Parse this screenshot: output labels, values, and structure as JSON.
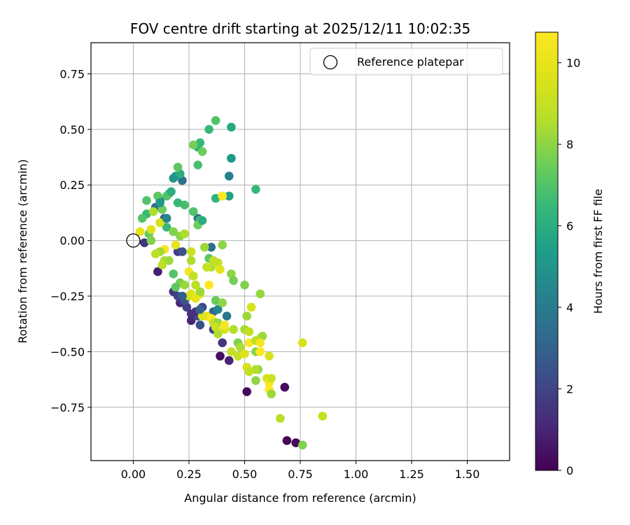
{
  "chart_data": {
    "type": "scatter",
    "title": "FOV centre drift starting at 2025/12/11 10:02:35",
    "xlabel": "Angular distance from reference (arcmin)",
    "ylabel": "Rotation from reference (arcmin)",
    "xlim": [
      -0.19,
      1.69
    ],
    "ylim": [
      -0.99,
      0.89
    ],
    "xticks": [
      0.0,
      0.25,
      0.5,
      0.75,
      1.0,
      1.25,
      1.5
    ],
    "yticks": [
      -0.75,
      -0.5,
      -0.25,
      0.0,
      0.25,
      0.5,
      0.75
    ],
    "xtick_labels": [
      "0.00",
      "0.25",
      "0.50",
      "0.75",
      "1.00",
      "1.25",
      "1.50"
    ],
    "ytick_labels": [
      "−0.75",
      "−0.50",
      "−0.25",
      "0.00",
      "0.25",
      "0.50",
      "0.75"
    ],
    "grid": true,
    "legend": {
      "location": "upper-right",
      "entries": [
        "Reference platepar"
      ]
    },
    "reference_point": {
      "x": 0.0,
      "y": 0.0
    },
    "colorbar": {
      "label": "Hours from first FF file",
      "min": 0,
      "max": 10.75,
      "ticks": [
        0,
        2,
        4,
        6,
        8,
        10
      ],
      "tick_labels": [
        "0",
        "2",
        "4",
        "6",
        "8",
        "10"
      ],
      "colormap": "viridis"
    },
    "points": [
      [
        0.69,
        -0.9,
        0.1
      ],
      [
        0.73,
        -0.91,
        0.2
      ],
      [
        0.68,
        -0.66,
        0.3
      ],
      [
        0.51,
        -0.68,
        0.2
      ],
      [
        0.39,
        -0.52,
        0.4
      ],
      [
        0.43,
        -0.54,
        1.0
      ],
      [
        0.4,
        -0.46,
        1.5
      ],
      [
        0.36,
        -0.4,
        2.0
      ],
      [
        0.3,
        -0.38,
        2.4
      ],
      [
        0.26,
        -0.36,
        1.0
      ],
      [
        0.21,
        -0.28,
        1.2
      ],
      [
        0.18,
        -0.23,
        1.5
      ],
      [
        0.11,
        -0.14,
        0.8
      ],
      [
        0.05,
        -0.01,
        1.5
      ],
      [
        0.24,
        -0.3,
        1.8
      ],
      [
        0.29,
        -0.34,
        2.2
      ],
      [
        0.31,
        -0.3,
        2.0
      ],
      [
        0.28,
        -0.32,
        1.6
      ],
      [
        0.26,
        -0.33,
        1.3
      ],
      [
        0.23,
        -0.27,
        2.5
      ],
      [
        0.2,
        -0.25,
        2.0
      ],
      [
        0.2,
        -0.05,
        1.8
      ],
      [
        0.22,
        -0.05,
        2.5
      ],
      [
        0.14,
        0.1,
        2.6
      ],
      [
        0.12,
        0.18,
        3.0
      ],
      [
        0.1,
        0.15,
        3.5
      ],
      [
        0.36,
        -0.32,
        3.2
      ],
      [
        0.42,
        -0.34,
        3.8
      ],
      [
        0.37,
        -0.37,
        3.5
      ],
      [
        0.38,
        -0.31,
        4.5
      ],
      [
        0.35,
        -0.03,
        3.5
      ],
      [
        0.29,
        0.1,
        4.0
      ],
      [
        0.22,
        0.27,
        3.5
      ],
      [
        0.43,
        0.29,
        4.2
      ],
      [
        0.44,
        0.37,
        5.2
      ],
      [
        0.44,
        0.51,
        5.8
      ],
      [
        0.43,
        0.2,
        5.5
      ],
      [
        0.29,
        0.42,
        6.2
      ],
      [
        0.3,
        0.44,
        6.5
      ],
      [
        0.34,
        0.5,
        6.5
      ],
      [
        0.37,
        0.54,
        7.0
      ],
      [
        0.55,
        0.23,
        6.5
      ],
      [
        0.37,
        0.19,
        6.2
      ],
      [
        0.19,
        0.29,
        5.5
      ],
      [
        0.21,
        0.3,
        6.0
      ],
      [
        0.31,
        0.4,
        7.5
      ],
      [
        0.27,
        0.43,
        7.6
      ],
      [
        0.29,
        0.34,
        6.8
      ],
      [
        0.2,
        0.33,
        7.2
      ],
      [
        0.23,
        0.16,
        6.8
      ],
      [
        0.2,
        0.17,
        6.5
      ],
      [
        0.27,
        0.13,
        7.0
      ],
      [
        0.3,
        0.09,
        6.8
      ],
      [
        0.29,
        0.07,
        7.5
      ],
      [
        0.16,
        0.21,
        6.7
      ],
      [
        0.15,
        0.2,
        7.0
      ],
      [
        0.11,
        0.2,
        7.2
      ],
      [
        0.06,
        0.18,
        7.0
      ],
      [
        0.06,
        0.12,
        6.5
      ],
      [
        0.04,
        0.1,
        7.0
      ],
      [
        0.07,
        0.03,
        7.4
      ],
      [
        0.08,
        0.0,
        7.8
      ],
      [
        0.13,
        0.14,
        7.5
      ],
      [
        0.09,
        0.13,
        8.5
      ],
      [
        0.15,
        0.06,
        6.5
      ],
      [
        0.18,
        0.04,
        7.8
      ],
      [
        0.21,
        0.02,
        8.0
      ],
      [
        0.23,
        0.03,
        8.5
      ],
      [
        0.12,
        0.08,
        9.5
      ],
      [
        0.08,
        0.05,
        9.8
      ],
      [
        0.03,
        0.04,
        10.0
      ],
      [
        0.14,
        -0.04,
        10.5
      ],
      [
        0.19,
        -0.02,
        10.0
      ],
      [
        0.12,
        -0.05,
        8.3
      ],
      [
        0.1,
        -0.06,
        8.8
      ],
      [
        0.14,
        -0.09,
        8.5
      ],
      [
        0.16,
        -0.09,
        8.2
      ],
      [
        0.13,
        -0.11,
        8.8
      ],
      [
        0.18,
        -0.15,
        7.0
      ],
      [
        0.21,
        -0.19,
        7.6
      ],
      [
        0.19,
        -0.21,
        7.2
      ],
      [
        0.23,
        -0.2,
        8.2
      ],
      [
        0.25,
        -0.25,
        9.0
      ],
      [
        0.26,
        -0.24,
        9.7
      ],
      [
        0.25,
        -0.14,
        10.5
      ],
      [
        0.27,
        -0.16,
        9.0
      ],
      [
        0.26,
        -0.09,
        8.5
      ],
      [
        0.26,
        -0.05,
        9.2
      ],
      [
        0.32,
        -0.03,
        8.2
      ],
      [
        0.34,
        -0.08,
        7.2
      ],
      [
        0.35,
        -0.12,
        8.6
      ],
      [
        0.33,
        -0.12,
        9.0
      ],
      [
        0.36,
        -0.09,
        8.8
      ],
      [
        0.38,
        -0.1,
        9.0
      ],
      [
        0.39,
        -0.13,
        9.8
      ],
      [
        0.4,
        -0.02,
        8.0
      ],
      [
        0.44,
        -0.15,
        8.0
      ],
      [
        0.45,
        -0.18,
        7.6
      ],
      [
        0.5,
        -0.2,
        7.8
      ],
      [
        0.57,
        -0.24,
        8.1
      ],
      [
        0.34,
        -0.2,
        10.7
      ],
      [
        0.3,
        -0.24,
        9.6
      ],
      [
        0.28,
        -0.26,
        10.0
      ],
      [
        0.3,
        -0.23,
        8.2
      ],
      [
        0.28,
        -0.2,
        8.8
      ],
      [
        0.37,
        -0.27,
        7.4
      ],
      [
        0.4,
        -0.28,
        8.0
      ],
      [
        0.31,
        -0.34,
        9.5
      ],
      [
        0.33,
        -0.34,
        9.8
      ],
      [
        0.35,
        -0.35,
        10.7
      ],
      [
        0.36,
        -0.37,
        9.0
      ],
      [
        0.38,
        -0.37,
        8.2
      ],
      [
        0.41,
        -0.4,
        9.5
      ],
      [
        0.41,
        -0.38,
        10.5
      ],
      [
        0.38,
        -0.42,
        8.5
      ],
      [
        0.37,
        -0.39,
        9.2
      ],
      [
        0.45,
        -0.4,
        8.6
      ],
      [
        0.44,
        -0.5,
        9.0
      ],
      [
        0.47,
        -0.46,
        7.8
      ],
      [
        0.48,
        -0.48,
        8.5
      ],
      [
        0.47,
        -0.52,
        9.0
      ],
      [
        0.5,
        -0.51,
        9.7
      ],
      [
        0.52,
        -0.46,
        10.7
      ],
      [
        0.5,
        -0.4,
        8.4
      ],
      [
        0.52,
        -0.41,
        9.0
      ],
      [
        0.51,
        -0.34,
        8.2
      ],
      [
        0.53,
        -0.3,
        9.5
      ],
      [
        0.55,
        -0.45,
        8.8
      ],
      [
        0.57,
        -0.44,
        9.0
      ],
      [
        0.58,
        -0.43,
        8.2
      ],
      [
        0.57,
        -0.46,
        10.5
      ],
      [
        0.55,
        -0.5,
        8.0
      ],
      [
        0.57,
        -0.5,
        10.7
      ],
      [
        0.56,
        -0.58,
        7.8
      ],
      [
        0.55,
        -0.58,
        8.6
      ],
      [
        0.61,
        -0.52,
        9.5
      ],
      [
        0.51,
        -0.57,
        9.5
      ],
      [
        0.52,
        -0.59,
        9.0
      ],
      [
        0.55,
        -0.63,
        8.0
      ],
      [
        0.6,
        -0.62,
        9.5
      ],
      [
        0.61,
        -0.64,
        10.5
      ],
      [
        0.62,
        -0.62,
        9.2
      ],
      [
        0.61,
        -0.67,
        10.7
      ],
      [
        0.62,
        -0.69,
        8.2
      ],
      [
        0.66,
        -0.8,
        8.8
      ],
      [
        0.76,
        -0.46,
        9.5
      ],
      [
        0.85,
        -0.79,
        9.0
      ],
      [
        0.76,
        -0.92,
        7.8
      ],
      [
        0.17,
        0.22,
        6.0
      ],
      [
        0.12,
        0.17,
        5.2
      ],
      [
        0.15,
        0.1,
        4.5
      ],
      [
        0.18,
        0.28,
        5.0
      ],
      [
        0.31,
        0.09,
        6.0
      ],
      [
        0.4,
        0.2,
        10.7
      ],
      [
        0.22,
        -0.25,
        2.8
      ],
      [
        0.3,
        -0.31,
        3.0
      ]
    ]
  }
}
